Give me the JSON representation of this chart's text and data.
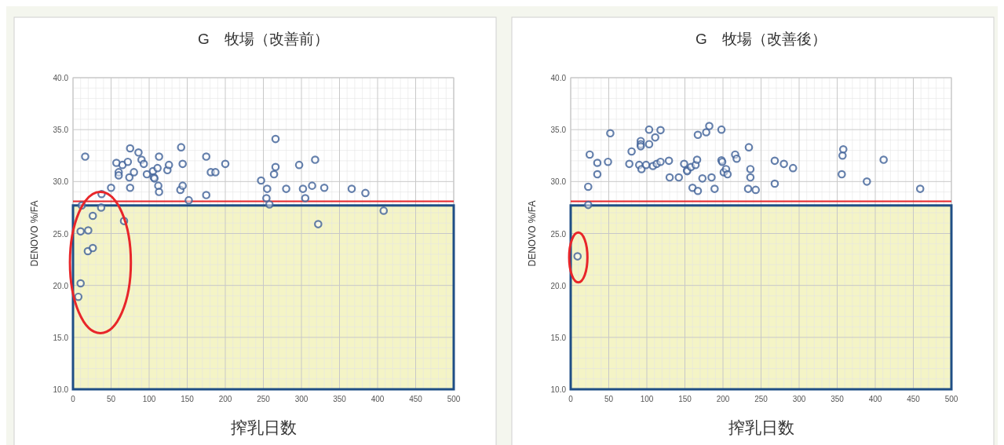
{
  "chart_data": [
    {
      "type": "scatter",
      "title": "G　牧場（改善前）",
      "xlabel": "搾乳日数",
      "ylabel": "DENOVO %/FA",
      "xlim": [
        0,
        500
      ],
      "ylim": [
        10,
        40
      ],
      "xticks": [
        0,
        50,
        100,
        150,
        200,
        250,
        300,
        350,
        400,
        450,
        500
      ],
      "yticks": [
        {
          "value": 10,
          "label": "10.0"
        },
        {
          "value": 15,
          "label": "15.0"
        },
        {
          "value": 20,
          "label": "20.0"
        },
        {
          "value": 25,
          "label": "25.0"
        },
        {
          "value": 30,
          "label": "30.0"
        },
        {
          "value": 35,
          "label": "35.0"
        },
        {
          "value": 40,
          "label": "40.0"
        }
      ],
      "grid": true,
      "marker": "circle",
      "ref_lines": [
        {
          "axis": "y",
          "value": 28.1,
          "color": "#e8262a"
        }
      ],
      "bands": [
        {
          "axis": "y",
          "from": 10,
          "to": 27.7,
          "color": "#f4f4c6"
        }
      ],
      "series": [
        {
          "color": "#4a6a9e",
          "x": [
            16,
            57,
            60,
            60,
            65,
            72,
            75,
            74,
            75,
            80,
            86,
            90,
            93,
            97,
            105,
            106,
            107,
            111,
            113,
            112,
            113,
            124,
            126,
            142,
            144,
            141,
            144,
            152,
            50,
            175,
            175,
            181,
            187,
            200,
            247,
            255,
            254,
            258,
            266,
            264,
            266,
            280,
            297,
            302,
            305,
            314,
            318,
            330,
            366,
            384,
            408,
            322,
            11.5,
            37.5,
            37,
            26,
            67,
            10,
            20,
            19.5,
            26,
            10,
            7
          ],
          "values": [
            32.4,
            31.8,
            30.9,
            30.6,
            31.6,
            31.9,
            33.2,
            30.4,
            29.4,
            30.9,
            32.8,
            32.1,
            31.7,
            30.7,
            31.0,
            30.4,
            30.3,
            31.3,
            32.4,
            29.6,
            29.0,
            31.1,
            31.6,
            33.3,
            31.7,
            29.2,
            29.6,
            28.2,
            29.4,
            28.7,
            32.4,
            30.9,
            30.9,
            31.7,
            30.1,
            29.3,
            28.4,
            27.8,
            34.1,
            30.7,
            31.4,
            29.3,
            31.6,
            29.3,
            28.4,
            29.6,
            32.1,
            29.4,
            29.3,
            28.9,
            27.2,
            25.9,
            27.7,
            28.8,
            27.5,
            26.7,
            26.2,
            25.2,
            25.3,
            23.3,
            23.6,
            20.2,
            18.9
          ]
        }
      ]
    },
    {
      "type": "scatter",
      "title": "G　牧場（改善後）",
      "xlabel": "搾乳日数",
      "ylabel": "DENOVO %/FA",
      "xlim": [
        0,
        500
      ],
      "ylim": [
        10,
        40
      ],
      "xticks": [
        0,
        50,
        100,
        150,
        200,
        250,
        300,
        350,
        400,
        450,
        500
      ],
      "yticks": [
        {
          "value": 10,
          "label": "10.0"
        },
        {
          "value": 15,
          "label": "15.0"
        },
        {
          "value": 20,
          "label": "20.0"
        },
        {
          "value": 25,
          "label": "25.0"
        },
        {
          "value": 30,
          "label": "30.0"
        },
        {
          "value": 35,
          "label": "35.0"
        },
        {
          "value": 40,
          "label": "40.0"
        }
      ],
      "grid": true,
      "marker": "circle",
      "ref_lines": [
        {
          "axis": "y",
          "value": 28.1,
          "color": "#e8262a"
        }
      ],
      "bands": [
        {
          "axis": "y",
          "from": 10,
          "to": 27.7,
          "color": "#f4f4c6"
        }
      ],
      "series": [
        {
          "color": "#4a6a9e",
          "x": [
            25,
            23,
            23,
            35,
            35,
            52,
            49,
            80,
            77,
            92,
            92,
            92,
            90,
            93,
            99,
            103,
            103,
            108,
            111,
            113,
            118,
            118,
            129,
            130,
            142,
            149,
            153,
            153,
            158,
            164,
            166,
            167,
            160,
            167,
            173,
            178,
            182,
            185,
            189,
            198,
            198,
            199,
            201,
            204,
            206,
            216,
            218,
            234,
            236,
            236,
            233,
            243,
            268,
            268,
            280,
            292,
            356,
            358,
            357,
            389,
            411,
            459,
            9
          ],
          "values": [
            32.6,
            29.5,
            27.75,
            31.8,
            30.7,
            34.65,
            31.9,
            32.9,
            31.7,
            33.9,
            33.6,
            33.4,
            31.6,
            31.2,
            31.6,
            35.0,
            33.6,
            31.5,
            34.25,
            31.7,
            34.95,
            31.9,
            32.0,
            30.4,
            30.4,
            31.7,
            31.1,
            31.0,
            31.4,
            31.6,
            32.1,
            34.5,
            29.4,
            29.1,
            30.3,
            34.75,
            35.35,
            30.4,
            29.3,
            35.0,
            32.05,
            31.9,
            30.9,
            31.2,
            30.7,
            32.6,
            32.2,
            33.3,
            31.2,
            30.4,
            29.3,
            29.2,
            29.8,
            32.0,
            31.7,
            31.3,
            30.7,
            33.1,
            32.5,
            30.0,
            32.1,
            29.3,
            22.8
          ]
        }
      ]
    }
  ]
}
